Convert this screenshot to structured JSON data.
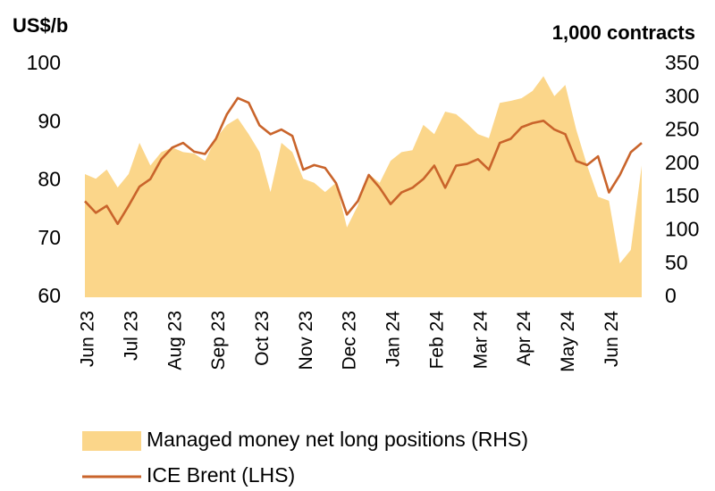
{
  "chart_data": {
    "type": "line",
    "ylabel": "US$/b",
    "y2label": "1,000 contracts",
    "categories": [
      "Jun 23",
      null,
      null,
      null,
      "Jul 23",
      null,
      null,
      null,
      "Aug 23",
      null,
      null,
      null,
      "Sep 23",
      null,
      null,
      null,
      "Oct 23",
      null,
      null,
      null,
      "Nov 23",
      null,
      null,
      null,
      "Dec 23",
      null,
      null,
      null,
      "Jan 24",
      null,
      null,
      null,
      "Feb 24",
      null,
      null,
      null,
      "Mar 24",
      null,
      null,
      null,
      "Apr 24",
      null,
      null,
      null,
      "May 24",
      null,
      null,
      null,
      "Jun 24",
      null,
      null,
      null
    ],
    "ylim": [
      60,
      100
    ],
    "yticks": [
      60,
      70,
      80,
      90,
      100
    ],
    "y2lim": [
      0,
      350
    ],
    "y2ticks": [
      0,
      50,
      100,
      150,
      200,
      250,
      300,
      350
    ],
    "legend": "bottom",
    "series": [
      {
        "name": "Managed money net long positions (RHS)",
        "kind": "area",
        "axis": "y2",
        "color": "#fbd68a",
        "values": [
          185,
          178,
          192,
          165,
          185,
          232,
          198,
          218,
          225,
          218,
          216,
          205,
          239,
          259,
          269,
          245,
          218,
          158,
          232,
          218,
          178,
          172,
          158,
          172,
          105,
          138,
          185,
          172,
          205,
          218,
          221,
          259,
          245,
          279,
          275,
          261,
          245,
          239,
          292,
          295,
          299,
          310,
          332,
          302,
          319,
          252,
          198,
          151,
          145,
          51,
          71,
          198
        ]
      },
      {
        "name": "ICE Brent (LHS)",
        "kind": "line",
        "axis": "y",
        "color": "#c9642b",
        "values": [
          76.5,
          74.5,
          75.7,
          72.6,
          75.7,
          79,
          80.3,
          83.7,
          85.7,
          86.5,
          85,
          84.6,
          87.2,
          91.4,
          94.2,
          93.4,
          89.5,
          88,
          88.8,
          87.7,
          81.9,
          82.7,
          82.2,
          79.6,
          74.2,
          76.5,
          81,
          78.8,
          76,
          78,
          78.8,
          80.3,
          82.6,
          78.8,
          82.6,
          82.9,
          83.7,
          81.9,
          86.5,
          87.2,
          89.2,
          89.9,
          90.3,
          88.8,
          88,
          83.4,
          82.7,
          84.2,
          78,
          81,
          84.9,
          86.5
        ]
      }
    ]
  }
}
